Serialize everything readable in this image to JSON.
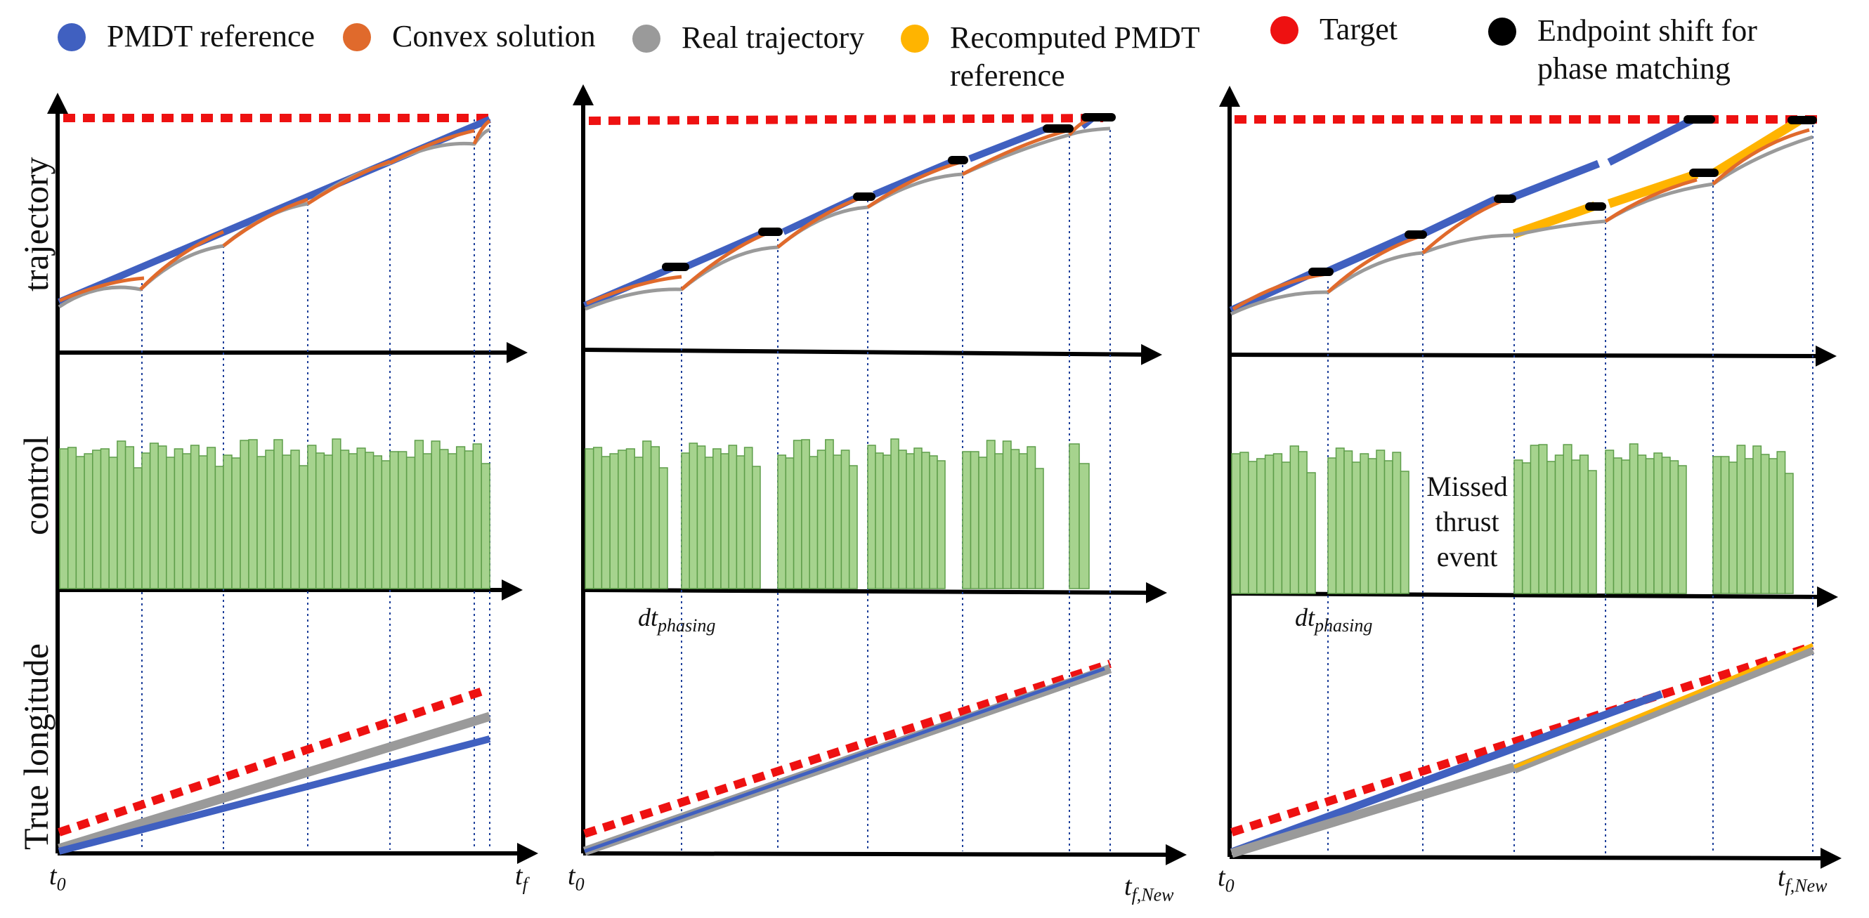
{
  "legend": [
    {
      "label": "PMDT reference",
      "color": "#4060c0"
    },
    {
      "label": "Convex solution",
      "color": "#e06a2c"
    },
    {
      "label": "Real trajectory",
      "color": "#9a9a9a"
    },
    {
      "label": "Recomputed PMDT\nreference",
      "color": "#ffb400"
    },
    {
      "label": "Target",
      "color": "#ee1111"
    },
    {
      "label": "Endpoint shift for\nphase matching",
      "color": "#000000"
    }
  ],
  "row_labels": {
    "trajectory": "trajectory",
    "control": "control",
    "longitude": "True longitude"
  },
  "missed_thrust": "Missed\nthrust\nevent",
  "dt_phasing": {
    "base": "dt",
    "sub": "phasing"
  },
  "panels": [
    {
      "t0_base": "t",
      "t0_sub": "0",
      "tf_base": "t",
      "tf_sub": "f"
    },
    {
      "t0_base": "t",
      "t0_sub": "0",
      "tf_base": "t",
      "tf_sub": "f,New"
    },
    {
      "t0_base": "t",
      "t0_sub": "0",
      "tf_base": "t",
      "tf_sub": "f,New"
    }
  ],
  "colors": {
    "pmdt": "#4060c0",
    "convex": "#e06a2c",
    "real": "#9a9a9a",
    "recomputed": "#ffb400",
    "target": "#ee1111",
    "shift": "#000000",
    "bar_fill": "#a6d38e",
    "bar_stroke": "#5e9e4a",
    "grid": "#1d3f9a"
  }
}
